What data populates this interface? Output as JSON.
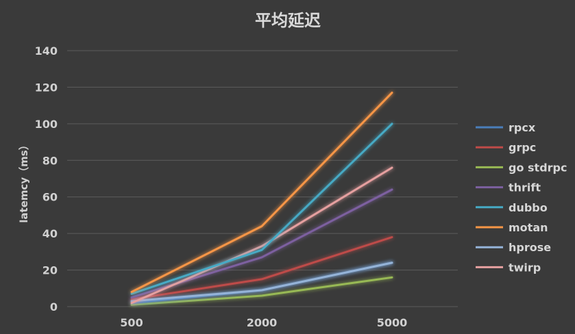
{
  "chart_data": {
    "type": "line",
    "title": "平均延迟",
    "xlabel": "",
    "ylabel": "latemcy（ms）",
    "categories": [
      "500",
      "2000",
      "5000"
    ],
    "ylim": [
      0,
      140
    ],
    "yticks": [
      0,
      20,
      40,
      60,
      80,
      100,
      120,
      140
    ],
    "grid": true,
    "legend": "right",
    "series": [
      {
        "name": "rpcx",
        "color": "#4a7ebb",
        "values": [
          2,
          9,
          24
        ]
      },
      {
        "name": "grpc",
        "color": "#be4b48",
        "values": [
          4,
          15,
          38
        ]
      },
      {
        "name": "go stdrpc",
        "color": "#98b954",
        "values": [
          1,
          6,
          16
        ]
      },
      {
        "name": "thrift",
        "color": "#7d60a0",
        "values": [
          5,
          27,
          64
        ]
      },
      {
        "name": "dubbo",
        "color": "#46aac5",
        "values": [
          7,
          31,
          100
        ]
      },
      {
        "name": "motan",
        "color": "#f79646",
        "values": [
          8,
          44,
          117
        ]
      },
      {
        "name": "hprose",
        "color": "#95b3d7",
        "values": [
          3,
          9,
          24
        ]
      },
      {
        "name": "twirp",
        "color": "#e6a0a0",
        "values": [
          2,
          33,
          76
        ]
      }
    ]
  }
}
